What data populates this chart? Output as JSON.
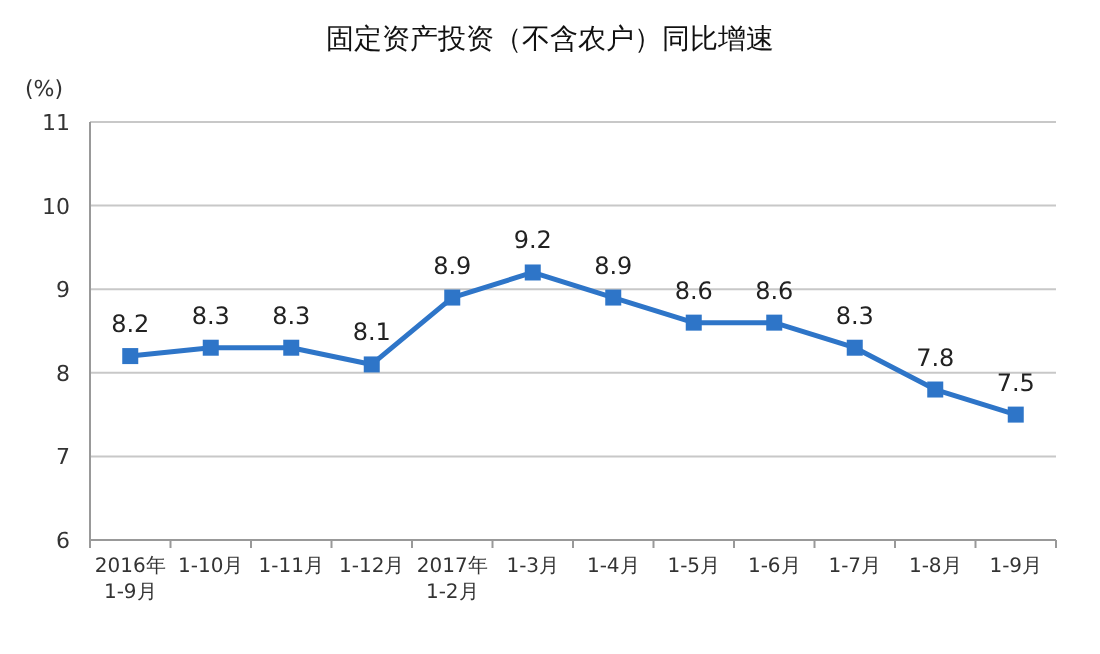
{
  "chart_data": {
    "type": "line",
    "title": "固定资产投资（不含农户）同比增速",
    "ylabel": "(%)",
    "categories": [
      "2016年\n1-9月",
      "1-10月",
      "1-11月",
      "1-12月",
      "2017年\n1-2月",
      "1-3月",
      "1-4月",
      "1-5月",
      "1-6月",
      "1-7月",
      "1-8月",
      "1-9月"
    ],
    "series": [
      {
        "color": "#2e75c8",
        "values": [
          8.2,
          8.3,
          8.3,
          8.1,
          8.9,
          9.2,
          8.9,
          8.6,
          8.6,
          8.3,
          7.8,
          7.5
        ]
      }
    ],
    "ylim": [
      6,
      11
    ],
    "yticks": [
      6,
      7,
      8,
      9,
      10,
      11
    ],
    "grid": "y",
    "marker": "square",
    "data_labels": true
  }
}
